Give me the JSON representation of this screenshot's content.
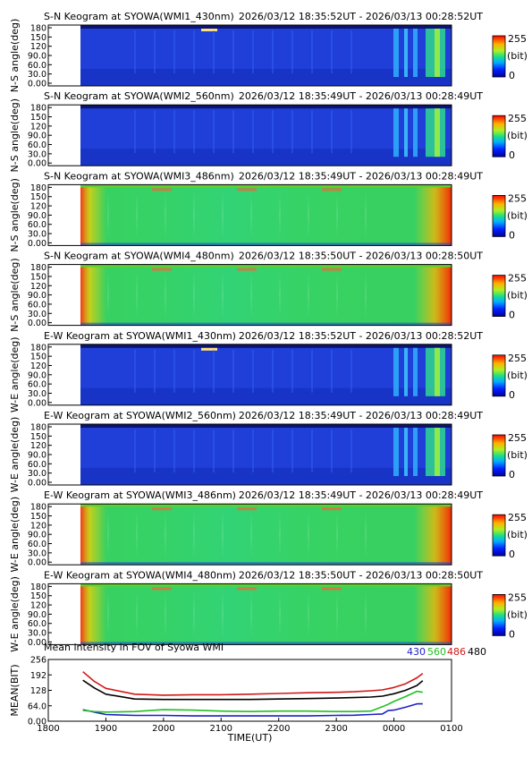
{
  "panels": [
    {
      "title": "S-N Keogram at SYOWA(WMI1_430nm)",
      "time_range": "2026/03/12 18:35:52UT - 2026/03/13 00:28:52UT",
      "ylabel": "N-S angle(deg)",
      "style": "blue",
      "brightTop": true
    },
    {
      "title": "S-N Keogram at SYOWA(WMI2_560nm)",
      "time_range": "2026/03/12 18:35:49UT - 2026/03/13 00:28:49UT",
      "ylabel": "N-S angle(deg)",
      "style": "blue",
      "brightTop": false
    },
    {
      "title": "S-N Keogram at SYOWA(WMI3_486nm)",
      "time_range": "2026/03/12 18:35:49UT - 2026/03/13 00:28:49UT",
      "ylabel": "N-S angle(deg)",
      "style": "green",
      "brightTop": false
    },
    {
      "title": "S-N Keogram at SYOWA(WMI4_480nm)",
      "time_range": "2026/03/12 18:35:50UT - 2026/03/13 00:28:50UT",
      "ylabel": "N-S angle(deg)",
      "style": "green",
      "brightTop": false
    },
    {
      "title": "E-W Keogram at SYOWA(WMI1_430nm)",
      "time_range": "2026/03/12 18:35:52UT - 2026/03/13 00:28:52UT",
      "ylabel": "W-E angle(deg)",
      "style": "blue",
      "brightTop": true
    },
    {
      "title": "E-W Keogram at SYOWA(WMI2_560nm)",
      "time_range": "2026/03/12 18:35:49UT - 2026/03/13 00:28:49UT",
      "ylabel": "W-E angle(deg)",
      "style": "blue",
      "brightTop": false
    },
    {
      "title": "E-W Keogram at SYOWA(WMI3_486nm)",
      "time_range": "2026/03/12 18:35:49UT - 2026/03/13 00:28:49UT",
      "ylabel": "W-E angle(deg)",
      "style": "green",
      "brightTop": false
    },
    {
      "title": "E-W Keogram at SYOWA(WMI4_480nm)",
      "time_range": "2026/03/12 18:35:50UT - 2026/03/13 00:28:50UT",
      "ylabel": "W-E angle(deg)",
      "style": "green",
      "brightTop": false
    }
  ],
  "keogram_yticks": [
    "180",
    "150",
    "120",
    "90.0",
    "60.0",
    "30.0",
    "0.00"
  ],
  "colorbar": {
    "max_label": "255",
    "unit_label": "(bit)",
    "min_label": "0"
  },
  "chart_data": {
    "type": "line",
    "title": "Mean intensity in FOV of Syowa WMI",
    "xlabel": "TIME(UT)",
    "ylabel": "MEAN(BIT)",
    "x_tick_labels": [
      "1800",
      "1900",
      "2000",
      "2100",
      "2200",
      "2300",
      "0000",
      "0100"
    ],
    "y_tick_labels": [
      "256",
      "192",
      "128",
      "64.0",
      "0.00"
    ],
    "ylim": [
      0,
      256
    ],
    "x_unit": "hours since 18:00 UT",
    "xlim": [
      0,
      7
    ],
    "series": [
      {
        "name": "430",
        "color": "#1f1fc8",
        "x": [
          0.6,
          0.8,
          1.0,
          1.5,
          2.0,
          2.5,
          3.0,
          3.5,
          4.0,
          4.5,
          5.0,
          5.3,
          5.6,
          5.8,
          5.9,
          6.0,
          6.2,
          6.4,
          6.5
        ],
        "y": [
          48,
          38,
          28,
          24,
          24,
          22,
          22,
          22,
          22,
          22,
          24,
          25,
          28,
          30,
          44,
          46,
          58,
          72,
          72
        ]
      },
      {
        "name": "560",
        "color": "#22c022",
        "x": [
          0.6,
          0.8,
          1.0,
          1.5,
          2.0,
          2.5,
          3.0,
          3.5,
          4.0,
          4.5,
          5.0,
          5.3,
          5.6,
          5.8,
          5.9,
          6.0,
          6.2,
          6.4,
          6.5
        ],
        "y": [
          45,
          40,
          38,
          40,
          48,
          46,
          42,
          40,
          42,
          42,
          40,
          40,
          42,
          60,
          70,
          82,
          102,
          124,
          120
        ]
      },
      {
        "name": "486",
        "color": "#d01818",
        "x": [
          0.6,
          0.8,
          1.0,
          1.5,
          2.0,
          2.5,
          3.0,
          3.5,
          4.0,
          4.5,
          5.0,
          5.3,
          5.6,
          5.8,
          6.0,
          6.2,
          6.4,
          6.5
        ],
        "y": [
          205,
          165,
          136,
          112,
          108,
          110,
          110,
          112,
          115,
          118,
          120,
          122,
          126,
          130,
          140,
          155,
          180,
          198
        ]
      },
      {
        "name": "480",
        "color": "#000000",
        "x": [
          0.6,
          0.8,
          1.0,
          1.5,
          2.0,
          2.5,
          3.0,
          3.5,
          4.0,
          4.5,
          5.0,
          5.3,
          5.6,
          5.8,
          6.0,
          6.2,
          6.4,
          6.5
        ],
        "y": [
          170,
          138,
          112,
          92,
          90,
          90,
          90,
          90,
          92,
          94,
          96,
          98,
          100,
          104,
          114,
          128,
          148,
          168
        ]
      }
    ]
  }
}
